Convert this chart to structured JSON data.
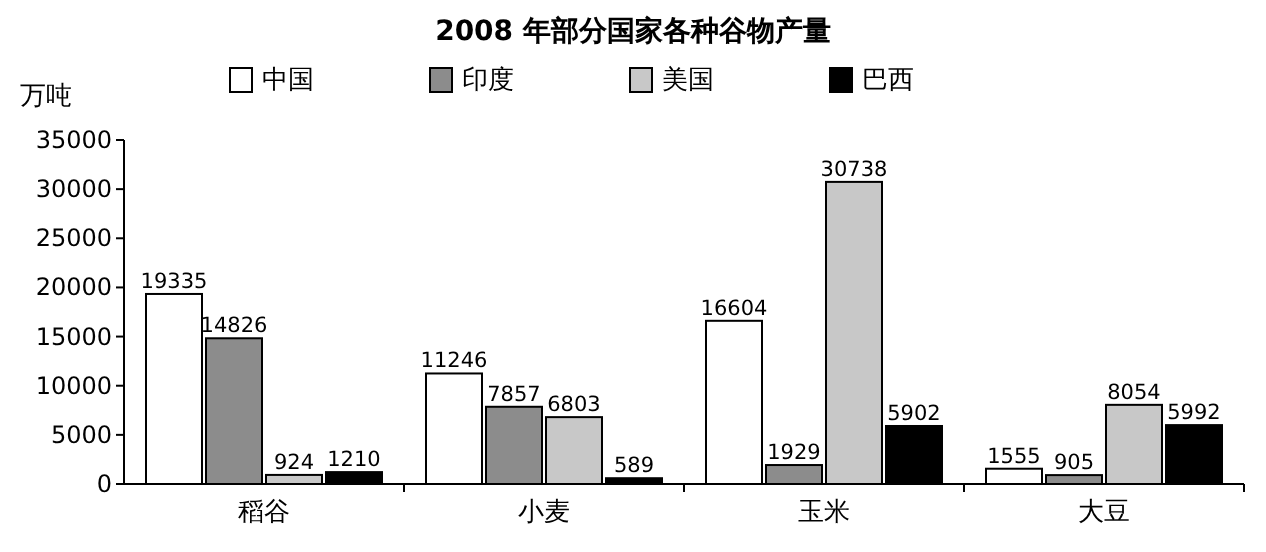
{
  "chart_data": {
    "type": "bar",
    "title": "2008 年部分国家各种谷物产量",
    "ylabel": "万吨",
    "categories": [
      "稻谷",
      "小麦",
      "玉米",
      "大豆"
    ],
    "series": [
      {
        "name": "中国",
        "color": "#ffffff",
        "values": [
          19335,
          11246,
          16604,
          1555
        ]
      },
      {
        "name": "印度",
        "color": "#8c8c8c",
        "values": [
          14826,
          7857,
          1929,
          905
        ]
      },
      {
        "name": "美国",
        "color": "#c8c8c8",
        "values": [
          924,
          6803,
          30738,
          8054
        ]
      },
      {
        "name": "巴西",
        "color": "#000000",
        "values": [
          1210,
          589,
          5902,
          5992
        ]
      }
    ],
    "ylim": [
      0,
      35000
    ],
    "yticks": [
      0,
      5000,
      10000,
      15000,
      20000,
      25000,
      30000,
      35000
    ],
    "data_labels": true,
    "legend": "top",
    "grid": false
  }
}
